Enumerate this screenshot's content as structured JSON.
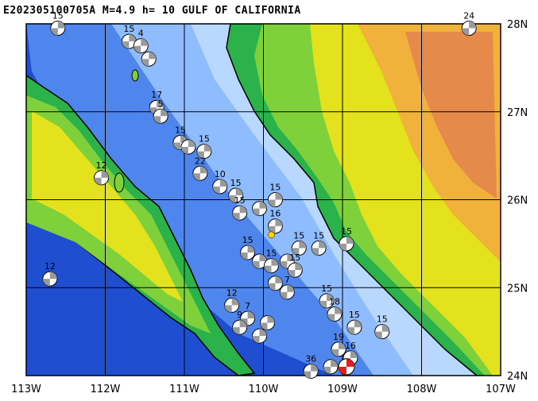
{
  "title": "E202305100705A M=4.9 h= 10 GULF OF CALIFORNIA",
  "map": {
    "lon_range": [
      -113,
      -107
    ],
    "lat_range": [
      24,
      28
    ],
    "x_ticks": [
      "113W",
      "112W",
      "111W",
      "110W",
      "109W",
      "108W",
      "107W"
    ],
    "y_ticks": [
      "28N",
      "27N",
      "26N",
      "25N",
      "24N"
    ],
    "colors": {
      "deep_ocean": "#1f4fd0",
      "mid_ocean": "#4f86ee",
      "shallow_ocean": "#8fbcff",
      "shelf": "#b8d8ff",
      "lowland": "#2bb24a",
      "plain": "#7ed13b",
      "hill": "#e3e21c",
      "upland": "#f0b23a",
      "mountain": "#e58a4a",
      "coast": "#000000",
      "focal_mech": "#9a9a9a",
      "event_mech": "#e02020",
      "epicenter": "#ffd400"
    }
  },
  "events": [
    {
      "lon": -112.6,
      "lat": 27.95,
      "depth": "15"
    },
    {
      "lon": -111.7,
      "lat": 27.8,
      "depth": "15"
    },
    {
      "lon": -111.55,
      "lat": 27.75,
      "depth": "4"
    },
    {
      "lon": -111.45,
      "lat": 27.6,
      "depth": ""
    },
    {
      "lon": -111.35,
      "lat": 27.05,
      "depth": "17"
    },
    {
      "lon": -111.3,
      "lat": 26.95,
      "depth": "5"
    },
    {
      "lon": -111.05,
      "lat": 26.65,
      "depth": "15"
    },
    {
      "lon": -110.95,
      "lat": 26.6,
      "depth": ""
    },
    {
      "lon": -110.75,
      "lat": 26.55,
      "depth": "15"
    },
    {
      "lon": -110.8,
      "lat": 26.3,
      "depth": "22"
    },
    {
      "lon": -110.55,
      "lat": 26.15,
      "depth": "10"
    },
    {
      "lon": -110.35,
      "lat": 26.05,
      "depth": "15"
    },
    {
      "lon": -110.3,
      "lat": 25.85,
      "depth": "15"
    },
    {
      "lon": -110.05,
      "lat": 25.9,
      "depth": ""
    },
    {
      "lon": -109.85,
      "lat": 25.7,
      "depth": "16"
    },
    {
      "lon": -109.85,
      "lat": 26.0,
      "depth": "15"
    },
    {
      "lon": -110.2,
      "lat": 25.4,
      "depth": "15"
    },
    {
      "lon": -110.05,
      "lat": 25.3,
      "depth": ""
    },
    {
      "lon": -109.9,
      "lat": 25.25,
      "depth": "15"
    },
    {
      "lon": -109.7,
      "lat": 25.3,
      "depth": ""
    },
    {
      "lon": -109.55,
      "lat": 25.45,
      "depth": "15"
    },
    {
      "lon": -109.6,
      "lat": 25.2,
      "depth": "15"
    },
    {
      "lon": -109.3,
      "lat": 25.45,
      "depth": "15"
    },
    {
      "lon": -108.95,
      "lat": 25.5,
      "depth": "15"
    },
    {
      "lon": -109.85,
      "lat": 25.05,
      "depth": ""
    },
    {
      "lon": -109.7,
      "lat": 24.95,
      "depth": "7"
    },
    {
      "lon": -109.2,
      "lat": 24.85,
      "depth": "15"
    },
    {
      "lon": -109.1,
      "lat": 24.7,
      "depth": "18"
    },
    {
      "lon": -110.4,
      "lat": 24.8,
      "depth": "12"
    },
    {
      "lon": -110.2,
      "lat": 24.65,
      "depth": "7"
    },
    {
      "lon": -110.3,
      "lat": 24.55,
      "depth": "9"
    },
    {
      "lon": -109.95,
      "lat": 24.6,
      "depth": ""
    },
    {
      "lon": -110.05,
      "lat": 24.45,
      "depth": ""
    },
    {
      "lon": -108.85,
      "lat": 24.55,
      "depth": "15"
    },
    {
      "lon": -108.5,
      "lat": 24.5,
      "depth": "15"
    },
    {
      "lon": -109.05,
      "lat": 24.3,
      "depth": "19"
    },
    {
      "lon": -108.9,
      "lat": 24.2,
      "depth": "16"
    },
    {
      "lon": -109.15,
      "lat": 24.1,
      "depth": ""
    },
    {
      "lon": -109.4,
      "lat": 24.05,
      "depth": "36"
    },
    {
      "lon": -112.05,
      "lat": 26.25,
      "depth": "12"
    },
    {
      "lon": -112.7,
      "lat": 25.1,
      "depth": "12"
    },
    {
      "lon": -107.4,
      "lat": 27.95,
      "depth": "24"
    }
  ],
  "main_event": {
    "lon": -108.95,
    "lat": 24.1,
    "depth": ""
  },
  "epicenter": {
    "lon": -109.9,
    "lat": 25.6
  }
}
